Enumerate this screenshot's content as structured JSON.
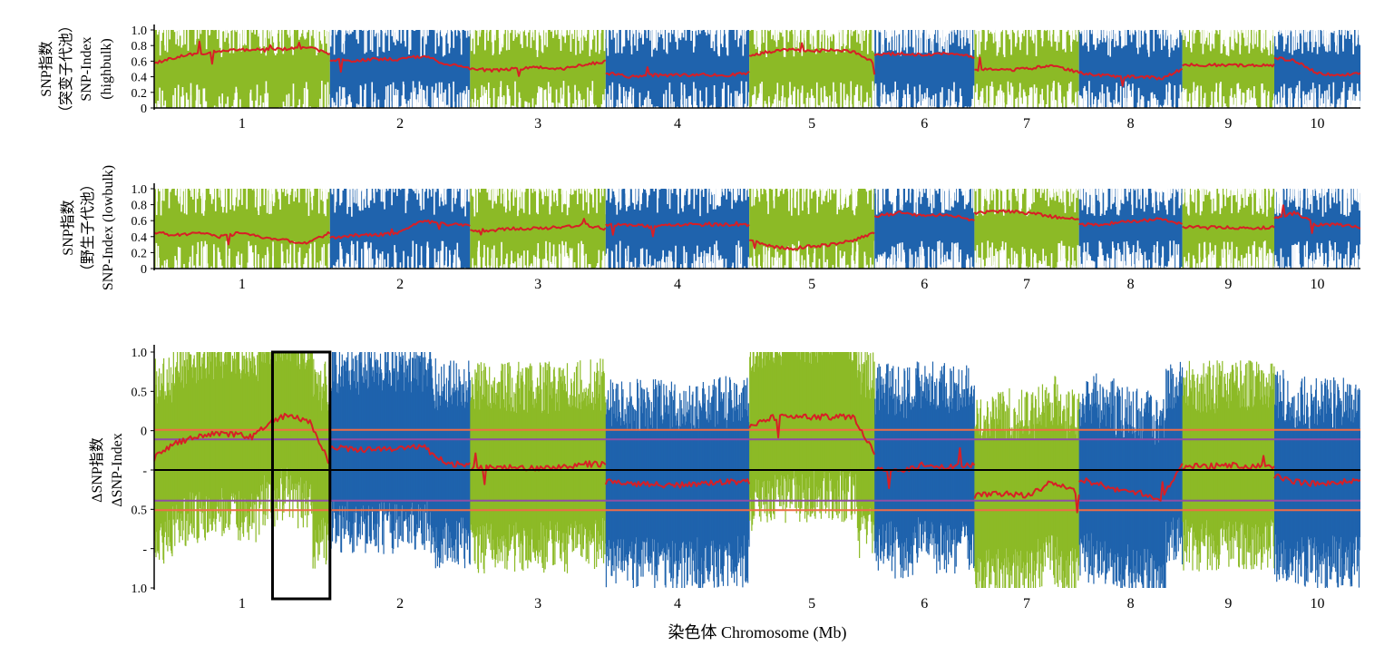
{
  "chart_data": [
    {
      "type": "scatter",
      "ylabel_lines": [
        "SNP指数",
        "（突变子代池）",
        "SNP-Index",
        "(highbulk)"
      ],
      "ylim": [
        0,
        1
      ],
      "yticks": [
        "1.0",
        "0.8",
        "0.6",
        "0.4",
        "0.2",
        "0"
      ],
      "chromosomes": [
        "1",
        "2",
        "3",
        "4",
        "5",
        "6",
        "7",
        "8",
        "9",
        "10"
      ],
      "chromosome_sizes": [
        306,
        244,
        236,
        250,
        218,
        174,
        182,
        180,
        160,
        150
      ],
      "series": [
        {
          "chromosome": "1",
          "values": [
            0.58,
            0.65,
            0.7,
            0.72,
            0.75,
            0.74,
            0.76,
            0.78,
            0.7
          ]
        },
        {
          "chromosome": "2",
          "values": [
            0.62,
            0.6,
            0.63,
            0.62,
            0.67,
            0.56,
            0.52
          ]
        },
        {
          "chromosome": "3",
          "values": [
            0.5,
            0.48,
            0.5,
            0.52,
            0.5,
            0.55,
            0.6
          ]
        },
        {
          "chromosome": "4",
          "values": [
            0.45,
            0.4,
            0.42,
            0.42,
            0.43,
            0.42,
            0.45
          ]
        },
        {
          "chromosome": "5",
          "values": [
            0.68,
            0.72,
            0.75,
            0.73,
            0.74,
            0.72,
            0.58
          ]
        },
        {
          "chromosome": "6",
          "values": [
            0.68,
            0.7,
            0.68,
            0.7,
            0.65
          ]
        },
        {
          "chromosome": "7",
          "values": [
            0.5,
            0.48,
            0.5,
            0.55,
            0.45
          ]
        },
        {
          "chromosome": "8",
          "values": [
            0.45,
            0.42,
            0.4,
            0.4,
            0.38,
            0.5
          ]
        },
        {
          "chromosome": "9",
          "values": [
            0.55,
            0.55,
            0.55,
            0.54,
            0.55
          ]
        },
        {
          "chromosome": "10",
          "values": [
            0.65,
            0.6,
            0.45,
            0.42,
            0.45
          ]
        }
      ]
    },
    {
      "type": "scatter",
      "ylabel_lines": [
        "SNP指数",
        "（野生子代池）",
        "SNP-Index (lowbulk)"
      ],
      "ylim": [
        0,
        1
      ],
      "yticks": [
        "1.0",
        "0.8",
        "0.6",
        "0.4",
        "0.2",
        "0"
      ],
      "chromosomes": [
        "1",
        "2",
        "3",
        "4",
        "5",
        "6",
        "7",
        "8",
        "9",
        "10"
      ],
      "chromosome_sizes": [
        306,
        244,
        236,
        250,
        218,
        174,
        182,
        180,
        160,
        150
      ],
      "series": [
        {
          "chromosome": "1",
          "values": [
            0.45,
            0.42,
            0.45,
            0.4,
            0.45,
            0.38,
            0.35,
            0.32,
            0.45
          ]
        },
        {
          "chromosome": "2",
          "values": [
            0.38,
            0.42,
            0.42,
            0.45,
            0.6,
            0.55,
            0.55
          ]
        },
        {
          "chromosome": "3",
          "values": [
            0.48,
            0.48,
            0.5,
            0.5,
            0.52,
            0.55,
            0.5
          ]
        },
        {
          "chromosome": "4",
          "values": [
            0.55,
            0.55,
            0.52,
            0.55,
            0.55,
            0.55,
            0.55
          ]
        },
        {
          "chromosome": "5",
          "values": [
            0.35,
            0.28,
            0.25,
            0.28,
            0.3,
            0.35,
            0.45
          ]
        },
        {
          "chromosome": "6",
          "values": [
            0.65,
            0.7,
            0.65,
            0.68,
            0.6
          ]
        },
        {
          "chromosome": "7",
          "values": [
            0.7,
            0.72,
            0.7,
            0.65,
            0.62
          ]
        },
        {
          "chromosome": "8",
          "values": [
            0.55,
            0.55,
            0.58,
            0.6,
            0.62,
            0.55
          ]
        },
        {
          "chromosome": "9",
          "values": [
            0.52,
            0.52,
            0.52,
            0.5,
            0.52
          ]
        },
        {
          "chromosome": "10",
          "values": [
            0.62,
            0.7,
            0.55,
            0.55,
            0.52
          ]
        }
      ]
    },
    {
      "type": "scatter",
      "ylabel_lines": [
        "ΔSNP指数",
        "ΔSNP-Index"
      ],
      "xlabel": "染色体 Chromosome (Mb)",
      "ylim": [
        -1,
        1
      ],
      "yticks": [
        "1.0",
        "0.5",
        "0",
        "-",
        "0.5",
        "-",
        "1.0"
      ],
      "chromosomes": [
        "1",
        "2",
        "3",
        "4",
        "5",
        "6",
        "7",
        "8",
        "9",
        "10"
      ],
      "chromosome_sizes": [
        306,
        244,
        236,
        250,
        218,
        174,
        182,
        180,
        160,
        150
      ],
      "threshold_99": 0.34,
      "threshold_95": 0.26,
      "highlight_region": {
        "chromosome": "1",
        "start_mb": 206,
        "end_mb": 306
      },
      "series": [
        {
          "chromosome": "1",
          "values": [
            0.1,
            0.22,
            0.27,
            0.3,
            0.3,
            0.28,
            0.42,
            0.47,
            0.4,
            0.05
          ]
        },
        {
          "chromosome": "2",
          "values": [
            0.2,
            0.17,
            0.18,
            0.18,
            0.2,
            0.05,
            0.05
          ]
        },
        {
          "chromosome": "3",
          "values": [
            0.02,
            0.02,
            0.02,
            0.02,
            0.02,
            0.05,
            0.05
          ]
        },
        {
          "chromosome": "4",
          "values": [
            -0.1,
            -0.12,
            -0.12,
            -0.13,
            -0.12,
            -0.1,
            -0.1
          ]
        },
        {
          "chromosome": "5",
          "values": [
            0.38,
            0.44,
            0.46,
            0.45,
            0.45,
            0.45,
            0.15
          ]
        },
        {
          "chromosome": "6",
          "values": [
            0.02,
            -0.02,
            0.05,
            0.02,
            0.05
          ]
        },
        {
          "chromosome": "7",
          "values": [
            -0.22,
            -0.2,
            -0.22,
            -0.1,
            -0.2
          ]
        },
        {
          "chromosome": "8",
          "values": [
            -0.08,
            -0.12,
            -0.18,
            -0.2,
            -0.25,
            0.05
          ]
        },
        {
          "chromosome": "9",
          "values": [
            0.03,
            0.03,
            0.04,
            0.03,
            0.03
          ]
        },
        {
          "chromosome": "10",
          "values": [
            -0.05,
            -0.1,
            -0.12,
            -0.1,
            -0.1
          ]
        }
      ]
    }
  ],
  "colors": {
    "odd_chromosome": "#8cba26",
    "even_chromosome": "#1f63ad",
    "index_line": "#d71f26",
    "threshold_99": "#ef6c46",
    "threshold_95": "#8e4fa4",
    "axis": "#000000",
    "highlight_box": "#000000"
  }
}
